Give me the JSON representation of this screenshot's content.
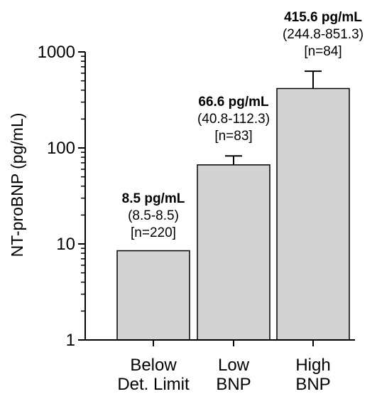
{
  "chart_data": {
    "type": "bar",
    "ylabel": "NT-proBNP (pg/mL)",
    "yscale": "log",
    "ylim": [
      1,
      1000
    ],
    "yticks": [
      1,
      10,
      100,
      1000
    ],
    "ytick_labels": [
      "1",
      "10",
      "100",
      "1000"
    ],
    "grid": false,
    "categories": [
      [
        "Below",
        "Det. Limit"
      ],
      [
        "Low",
        "BNP"
      ],
      [
        "High",
        "BNP"
      ]
    ],
    "values": [
      8.5,
      66.6,
      415.6
    ],
    "error_upper": [
      8.5,
      82.5,
      630
    ],
    "annotations": [
      {
        "median": "8.5 pg/mL",
        "range": "(8.5-8.5)",
        "n": "[n=220]"
      },
      {
        "median": "66.6 pg/mL",
        "range": "(40.8-112.3)",
        "n": "[n=83]"
      },
      {
        "median": "415.6 pg/mL",
        "range": "(244.8-851.3)",
        "n": "[n=84]"
      }
    ],
    "colors": {
      "bar_fill": "#d3d3d3",
      "bar_stroke": "#000000",
      "axis": "#000000"
    }
  }
}
